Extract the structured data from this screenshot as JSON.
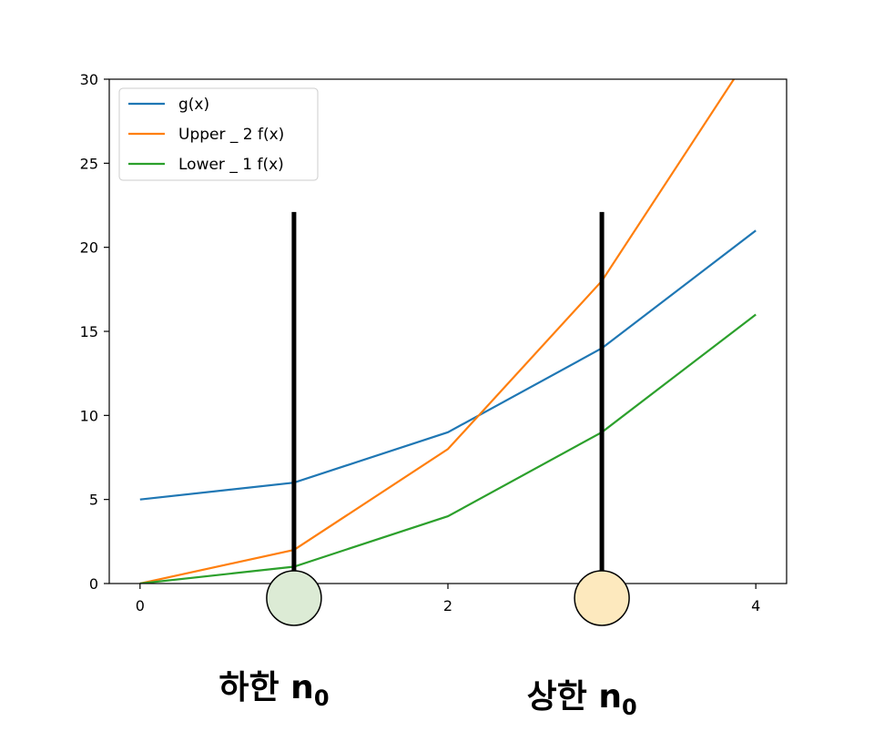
{
  "chart_data": {
    "type": "line",
    "x": [
      0,
      1,
      2,
      3,
      4
    ],
    "series": [
      {
        "name": "g(x)",
        "color": "#1f77b4",
        "values": [
          5,
          6,
          9,
          14,
          21
        ]
      },
      {
        "name": "Upper _ 2 f(x)",
        "color": "#ff7f0e",
        "values": [
          0,
          2,
          8,
          18,
          32
        ]
      },
      {
        "name": "Lower _ 1 f(x)",
        "color": "#2ca02c",
        "values": [
          0,
          1,
          4,
          9,
          16
        ]
      }
    ],
    "xlim": [
      -0.2,
      4.2
    ],
    "ylim": [
      0,
      30
    ],
    "xticks": [
      0,
      1,
      2,
      3,
      4
    ],
    "yticks": [
      0,
      5,
      10,
      15,
      20,
      25,
      30
    ],
    "legend_position": "upper-left",
    "grid": false,
    "annotations": [
      {
        "x": 1,
        "label_main": "하한 n",
        "label_sub": "0",
        "circle_color": "#dcebd5"
      },
      {
        "x": 3,
        "label_main": "상한 n",
        "label_sub": "0",
        "circle_color": "#fde9be"
      }
    ]
  }
}
